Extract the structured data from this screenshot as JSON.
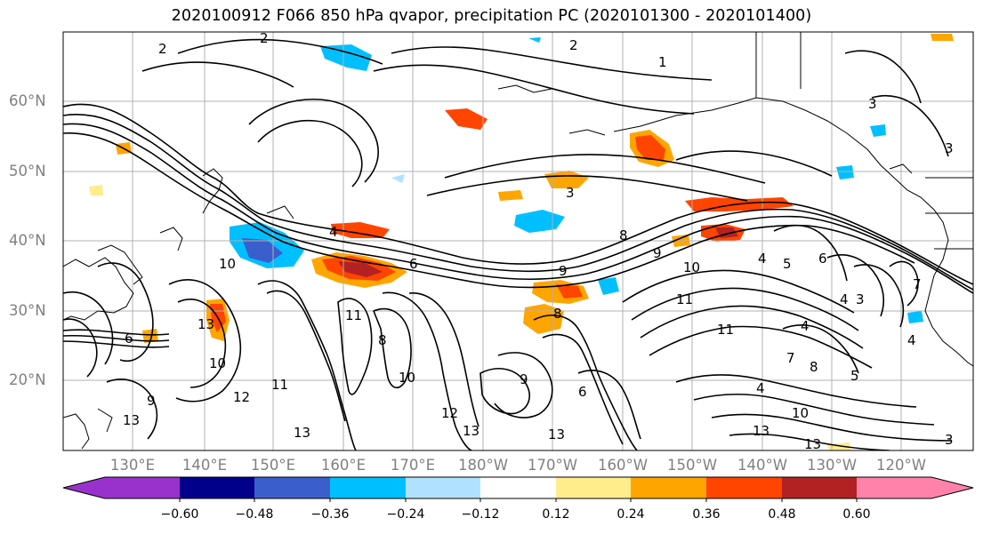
{
  "title": "2020100912 F066 850 hPa qvapor, precipitation PC (2020101300 - 2020101400)",
  "lat_labels": [
    "60°N",
    "50°N",
    "40°N",
    "30°N",
    "20°N"
  ],
  "lon_labels": [
    "130°E",
    "140°E",
    "150°E",
    "160°E",
    "170°E",
    "180°W",
    "170°W",
    "160°W",
    "150°W",
    "140°W",
    "130°W",
    "120°W"
  ],
  "colorbar": {
    "ticks": [
      "−0.60",
      "−0.48",
      "−0.36",
      "−0.24",
      "−0.12",
      "0.12",
      "0.24",
      "0.36",
      "0.48",
      "0.60"
    ],
    "colors": [
      "#9932cc",
      "#00008b",
      "#3a5fcd",
      "#00bfff",
      "#b0e2ff",
      "#ffffff",
      "#ffec8b",
      "#ffa500",
      "#ff4500",
      "#b22222",
      "#ff82ab"
    ]
  },
  "contour_labels": [
    "1",
    "2",
    "3",
    "4",
    "5",
    "6",
    "7",
    "8",
    "9",
    "10",
    "11",
    "12",
    "13"
  ]
}
